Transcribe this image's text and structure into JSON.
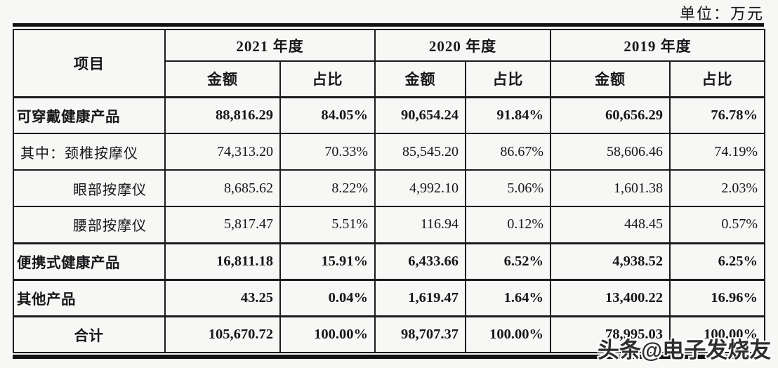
{
  "unit_label": "单位：万元",
  "watermark": "头条@电子发烧友",
  "colors": {
    "background": "#f7f7f5",
    "text": "#17171a",
    "border": "#1b1b1d",
    "thick_rule": "#121214",
    "watermark_text": "#2e2e30",
    "watermark_outline": "#ffffff"
  },
  "table": {
    "item_header": "项目",
    "amount_header": "金额",
    "share_header": "占比",
    "year_groups": [
      {
        "label": "2021 年度"
      },
      {
        "label": "2020 年度"
      },
      {
        "label": "2019 年度"
      }
    ],
    "rows": [
      {
        "label": "可穿戴健康产品",
        "level": "category",
        "values": [
          "88,816.29",
          "84.05%",
          "90,654.24",
          "91.84%",
          "60,656.29",
          "76.78%"
        ]
      },
      {
        "label": "其中：颈椎按摩仪",
        "level": "detail-first",
        "values": [
          "74,313.20",
          "70.33%",
          "85,545.20",
          "86.67%",
          "58,606.46",
          "74.19%"
        ]
      },
      {
        "label": "眼部按摩仪",
        "level": "detail",
        "values": [
          "8,685.62",
          "8.22%",
          "4,992.10",
          "5.06%",
          "1,601.38",
          "2.03%"
        ]
      },
      {
        "label": "腰部按摩仪",
        "level": "detail",
        "values": [
          "5,817.47",
          "5.51%",
          "116.94",
          "0.12%",
          "448.45",
          "0.57%"
        ]
      },
      {
        "label": "便携式健康产品",
        "level": "category",
        "values": [
          "16,811.18",
          "15.91%",
          "6,433.66",
          "6.52%",
          "4,938.52",
          "6.25%"
        ]
      },
      {
        "label": "其他产品",
        "level": "category",
        "values": [
          "43.25",
          "0.04%",
          "1,619.47",
          "1.64%",
          "13,400.22",
          "16.96%"
        ]
      },
      {
        "label": "合计",
        "level": "total",
        "values": [
          "105,670.72",
          "100.00%",
          "98,707.37",
          "100.00%",
          "78,995.03",
          "100.00%"
        ]
      }
    ]
  }
}
